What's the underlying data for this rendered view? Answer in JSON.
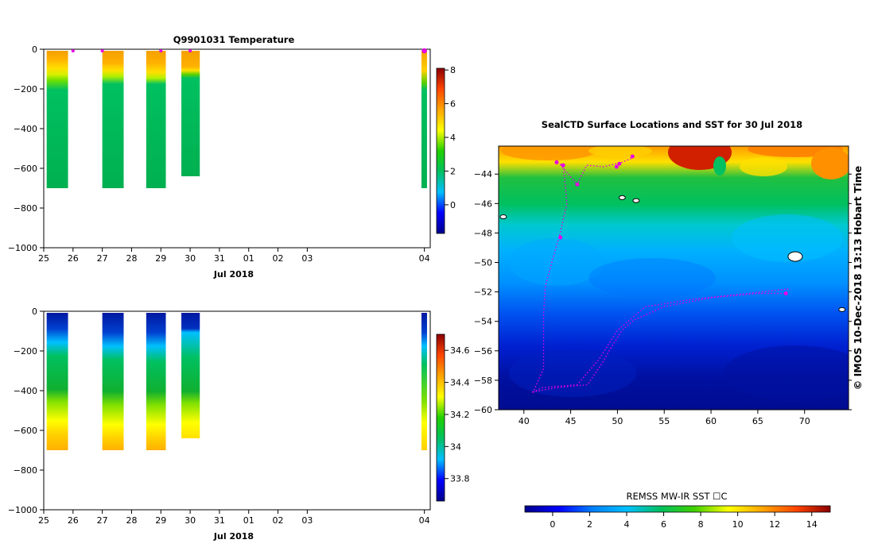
{
  "figure": {
    "footer_credit": "© IMOS 10-Dec-2018 13:13 Hobart Time",
    "colors": {
      "profile_marker": "#e600e6",
      "track": "#e600e6"
    }
  },
  "chart_data": [
    {
      "id": "temperature",
      "type": "heatmap",
      "title": "Q9901031  Temperature",
      "xlabel": "Jul 2018",
      "x_ticks": [
        "25",
        "26",
        "27",
        "28",
        "29",
        "30",
        "31",
        "01",
        "02",
        "03",
        "04"
      ],
      "y_ticks": [
        "0",
        "−200",
        "−400",
        "−600",
        "−800",
        "−1000"
      ],
      "ylim": [
        -1000,
        0
      ],
      "colorbar": {
        "ticks": [
          "8",
          "6",
          "4",
          "2",
          "0"
        ],
        "range": [
          -1.7,
          8.1
        ],
        "colors": [
          "#00008b",
          "#0000ff",
          "#00bfff",
          "#00c060",
          "#20d000",
          "#ffff00",
          "#ffa500",
          "#ff4500",
          "#8b0000"
        ]
      },
      "profiles": [
        {
          "day": 25.1,
          "width": 0.73,
          "max_depth": 700,
          "stops": [
            [
              0,
              "#f4a000"
            ],
            [
              40,
              "#ffb000"
            ],
            [
              90,
              "#ffe000"
            ],
            [
              120,
              "#d8f000"
            ],
            [
              150,
              "#70e000"
            ],
            [
              200,
              "#00c060"
            ],
            [
              700,
              "#00b050"
            ]
          ]
        },
        {
          "day": 27.0,
          "width": 0.73,
          "max_depth": 700,
          "stops": [
            [
              0,
              "#f4a000"
            ],
            [
              60,
              "#ffb000"
            ],
            [
              100,
              "#ffe000"
            ],
            [
              130,
              "#b0f000"
            ],
            [
              170,
              "#00c060"
            ],
            [
              700,
              "#00b050"
            ]
          ]
        },
        {
          "day": 28.5,
          "width": 0.67,
          "max_depth": 700,
          "stops": [
            [
              0,
              "#f4a000"
            ],
            [
              60,
              "#ffb000"
            ],
            [
              110,
              "#ffe000"
            ],
            [
              140,
              "#b0f000"
            ],
            [
              170,
              "#00c060"
            ],
            [
              700,
              "#00b050"
            ]
          ]
        },
        {
          "day": 29.7,
          "width": 0.63,
          "max_depth": 640,
          "stops": [
            [
              0,
              "#f4a000"
            ],
            [
              80,
              "#ffb000"
            ],
            [
              100,
              "#ffe000"
            ],
            [
              120,
              "#60d000"
            ],
            [
              140,
              "#00c060"
            ],
            [
              640,
              "#00b050"
            ]
          ]
        },
        {
          "day": 37.9,
          "width": 0.19,
          "max_depth": 700,
          "stops": [
            [
              0,
              "#f4a000"
            ],
            [
              100,
              "#ffd000"
            ],
            [
              160,
              "#60d000"
            ],
            [
              200,
              "#00c060"
            ],
            [
              700,
              "#00b050"
            ]
          ]
        }
      ],
      "markers": [
        26.0,
        27.0,
        29.0,
        30.0,
        38.0
      ]
    },
    {
      "id": "salinity",
      "type": "heatmap",
      "title": "",
      "xlabel": "Jul 2018",
      "x_ticks": [
        "25",
        "26",
        "27",
        "28",
        "29",
        "30",
        "31",
        "01",
        "02",
        "03",
        "04"
      ],
      "y_ticks": [
        "0",
        "−200",
        "−400",
        "−600",
        "−800",
        "−1000"
      ],
      "ylim": [
        -1000,
        0
      ],
      "colorbar": {
        "ticks": [
          "34.6",
          "34.4",
          "34.2",
          "34",
          "33.8"
        ],
        "range": [
          33.66,
          34.7
        ],
        "colors": [
          "#00008b",
          "#0000ff",
          "#00bfff",
          "#00c060",
          "#20d000",
          "#ffff00",
          "#ffa500",
          "#ff4500",
          "#8b0000"
        ]
      },
      "profiles": [
        {
          "day": 25.1,
          "width": 0.73,
          "max_depth": 700,
          "stops": [
            [
              0,
              "#0018a0"
            ],
            [
              80,
              "#0040d0"
            ],
            [
              150,
              "#00c0ff"
            ],
            [
              220,
              "#00c060"
            ],
            [
              390,
              "#10b030"
            ],
            [
              450,
              "#80e000"
            ],
            [
              550,
              "#ffff00"
            ],
            [
              620,
              "#ffd000"
            ],
            [
              700,
              "#ffb000"
            ]
          ]
        },
        {
          "day": 27.0,
          "width": 0.73,
          "max_depth": 700,
          "stops": [
            [
              0,
              "#0018a0"
            ],
            [
              100,
              "#0040d0"
            ],
            [
              170,
              "#00c0ff"
            ],
            [
              240,
              "#00c060"
            ],
            [
              400,
              "#10b030"
            ],
            [
              470,
              "#80e000"
            ],
            [
              570,
              "#ffff00"
            ],
            [
              640,
              "#ffd000"
            ],
            [
              700,
              "#ffb000"
            ]
          ]
        },
        {
          "day": 28.5,
          "width": 0.67,
          "max_depth": 700,
          "stops": [
            [
              0,
              "#0018a0"
            ],
            [
              100,
              "#0040d0"
            ],
            [
              170,
              "#00c0ff"
            ],
            [
              250,
              "#00c060"
            ],
            [
              400,
              "#10b030"
            ],
            [
              470,
              "#80e000"
            ],
            [
              570,
              "#ffff00"
            ],
            [
              640,
              "#ffd000"
            ],
            [
              700,
              "#ffb000"
            ]
          ]
        },
        {
          "day": 29.7,
          "width": 0.63,
          "max_depth": 640,
          "stops": [
            [
              0,
              "#0018a0"
            ],
            [
              80,
              "#0030c0"
            ],
            [
              100,
              "#00c0ff"
            ],
            [
              230,
              "#00c060"
            ],
            [
              400,
              "#10b030"
            ],
            [
              460,
              "#80e000"
            ],
            [
              560,
              "#ffff00"
            ],
            [
              640,
              "#ffe000"
            ]
          ]
        },
        {
          "day": 37.9,
          "width": 0.19,
          "max_depth": 700,
          "stops": [
            [
              0,
              "#0018a0"
            ],
            [
              100,
              "#0040d0"
            ],
            [
              170,
              "#00c0ff"
            ],
            [
              260,
              "#00c060"
            ],
            [
              450,
              "#80e000"
            ],
            [
              560,
              "#ffff00"
            ],
            [
              700,
              "#ffd000"
            ]
          ]
        }
      ],
      "markers": []
    },
    {
      "id": "sst-map",
      "type": "heatmap",
      "title": "SealCTD Surface Locations and SST for 30 Jul 2018",
      "x_ticks": [
        "40",
        "45",
        "50",
        "55",
        "60",
        "65",
        "70"
      ],
      "y_ticks": [
        "−44",
        "−46",
        "−48",
        "−50",
        "−52",
        "−54",
        "−56",
        "−58",
        "−60"
      ],
      "xlim": [
        37.3,
        74.7
      ],
      "ylim": [
        -60,
        -42.1
      ],
      "colorbar": {
        "label": "REMSS MW-IR SST ☐C",
        "ticks": [
          "0",
          "2",
          "4",
          "6",
          "8",
          "10",
          "12",
          "14"
        ],
        "range": [
          -1.5,
          15
        ],
        "colors": [
          "#00008b",
          "#0000ff",
          "#0080ff",
          "#00c0ff",
          "#00c060",
          "#40d000",
          "#ffff00",
          "#ffa500",
          "#ff4500",
          "#8b0000"
        ]
      },
      "track": [
        [
          40.9,
          -58.8
        ],
        [
          43.5,
          -58.5
        ],
        [
          46.8,
          -58.3
        ],
        [
          48.4,
          -56.8
        ],
        [
          49.3,
          -55.8
        ],
        [
          50.5,
          -54.6
        ],
        [
          51.8,
          -53.9
        ],
        [
          55,
          -53
        ],
        [
          60,
          -52.4
        ],
        [
          65,
          -52.1
        ],
        [
          68,
          -52.1
        ],
        [
          68.2,
          -51.8
        ],
        [
          64,
          -52.1
        ],
        [
          58,
          -52.5
        ],
        [
          53,
          -53
        ],
        [
          50,
          -54.6
        ],
        [
          48,
          -56.6
        ],
        [
          45.7,
          -58.3
        ],
        [
          42,
          -58.5
        ],
        [
          41,
          -58.8
        ],
        [
          42.1,
          -57.2
        ],
        [
          42.1,
          -55.5
        ],
        [
          42.1,
          -53.5
        ],
        [
          42.3,
          -51.6
        ],
        [
          43.2,
          -49.5
        ],
        [
          43.8,
          -48.2
        ],
        [
          44.6,
          -46
        ],
        [
          44.3,
          -44
        ],
        [
          44.2,
          -43.4
        ],
        [
          43.8,
          -43.3
        ],
        [
          45.7,
          -44.7
        ],
        [
          46.7,
          -43.4
        ],
        [
          48.5,
          -43.5
        ],
        [
          50.5,
          -43.2
        ],
        [
          51.6,
          -42.9
        ]
      ],
      "positions": [
        [
          43.5,
          -43.2
        ],
        [
          44.2,
          -43.4
        ],
        [
          45.7,
          -44.7
        ],
        [
          49.9,
          -43.5
        ],
        [
          50.2,
          -43.3
        ],
        [
          51.6,
          -42.8
        ],
        [
          43.9,
          -48.3
        ],
        [
          68,
          -52.1
        ]
      ],
      "islands": [
        [
          37.8,
          -46.9
        ],
        [
          50.5,
          -45.6
        ],
        [
          52,
          -45.8
        ],
        [
          69,
          -49.6
        ],
        [
          74,
          -53.2
        ]
      ]
    }
  ]
}
